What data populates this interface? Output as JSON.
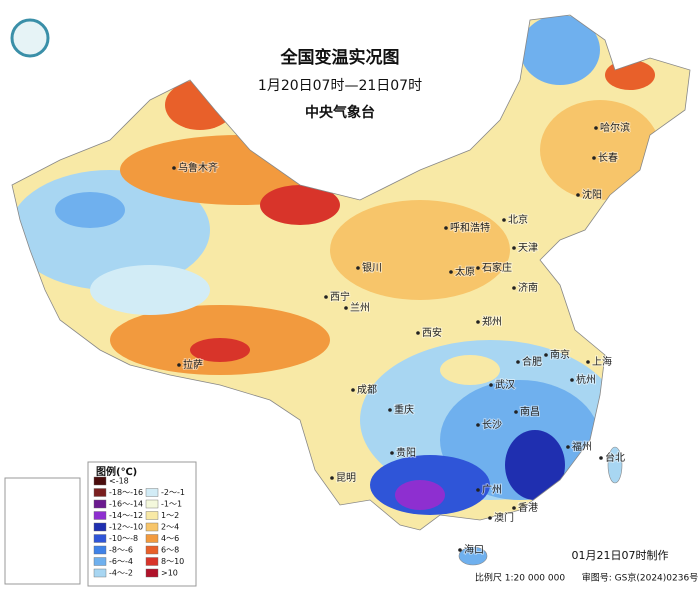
{
  "title": "全国变温实况图",
  "subtitle": "1月20日07时—21日07时",
  "organization": "中央气象台",
  "cities": [
    "乌鲁木齐",
    "拉萨",
    "西宁",
    "兰州",
    "银川",
    "呼和浩特",
    "北京",
    "天津",
    "太原",
    "石家庄",
    "济南",
    "郑州",
    "西安",
    "合肥",
    "南京",
    "上海",
    "杭州",
    "武汉",
    "成都",
    "重庆",
    "长沙",
    "南昌",
    "福州",
    "台北",
    "贵阳",
    "昆明",
    "广州",
    "香港",
    "澳门",
    "海口",
    "哈尔滨",
    "长春",
    "沈阳"
  ],
  "legend": {
    "title": "图例(℃)",
    "items": [
      {
        "label": "<-18",
        "color": "#4a0d0d"
      },
      {
        "label": "-18～-16",
        "color": "#7a1f1f"
      },
      {
        "label": "-16～-14",
        "color": "#6b1a8f"
      },
      {
        "label": "-14～-12",
        "color": "#8e2fd0"
      },
      {
        "label": "-12～-10",
        "color": "#1f2fb0"
      },
      {
        "label": "-10～-8",
        "color": "#2f55d8"
      },
      {
        "label": "-8～-6",
        "color": "#3f82e8"
      },
      {
        "label": "-6～-4",
        "color": "#6fb0ee"
      },
      {
        "label": "-4～-2",
        "color": "#a8d6f2"
      },
      {
        "label": "-2～-1",
        "color": "#d2ecf6"
      },
      {
        "label": "-1～1",
        "color": "#f4f8dc"
      },
      {
        "label": "1～2",
        "color": "#f8e9a6"
      },
      {
        "label": "2～4",
        "color": "#f7c56a"
      },
      {
        "label": "4～6",
        "color": "#f29a3e"
      },
      {
        "label": "6～8",
        "color": "#e8602a"
      },
      {
        "label": "8～10",
        "color": "#d8342a"
      },
      {
        "label": ">10",
        "color": "#b0122a"
      }
    ]
  },
  "footer": {
    "made": "01月21日07时制作",
    "scale": "比例尺 1:20 000 000",
    "approval": "审图号: GS京(2024)0236号"
  }
}
